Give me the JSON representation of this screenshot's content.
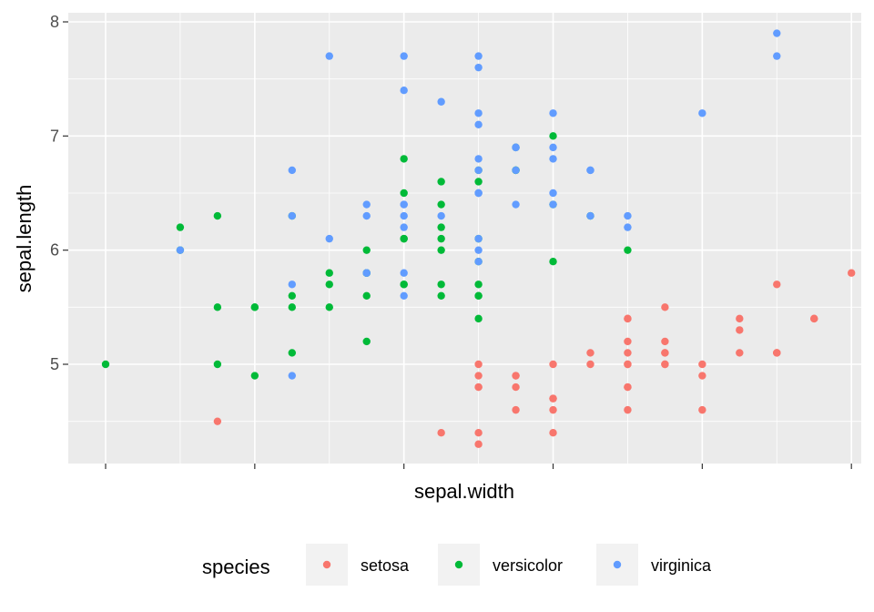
{
  "chart_data": {
    "type": "scatter",
    "title": "",
    "xlabel": "sepal.width",
    "ylabel": "sepal.length",
    "xlim": [
      2.0,
      4.4
    ],
    "ylim": [
      4.3,
      7.9
    ],
    "x_tick_labels_shown": false,
    "yticks": [
      5,
      6,
      7,
      8
    ],
    "y_tick_labels": [
      "5",
      "6",
      "7",
      "8"
    ],
    "grid": true,
    "legend": {
      "title": "species",
      "position": "bottom"
    },
    "series": [
      {
        "name": "setosa",
        "color": "#F8766D",
        "points": [
          [
            5.1,
            3.5
          ],
          [
            4.9,
            3.0
          ],
          [
            4.7,
            3.2
          ],
          [
            4.6,
            3.1
          ],
          [
            5.0,
            3.6
          ],
          [
            5.4,
            3.9
          ],
          [
            4.6,
            3.4
          ],
          [
            5.0,
            3.4
          ],
          [
            4.4,
            2.9
          ],
          [
            4.9,
            3.1
          ],
          [
            5.4,
            3.7
          ],
          [
            4.8,
            3.4
          ],
          [
            4.8,
            3.0
          ],
          [
            4.3,
            3.0
          ],
          [
            5.8,
            4.0
          ],
          [
            5.7,
            4.4
          ],
          [
            5.4,
            3.9
          ],
          [
            5.1,
            3.5
          ],
          [
            5.7,
            3.8
          ],
          [
            5.1,
            3.8
          ],
          [
            5.4,
            3.4
          ],
          [
            5.1,
            3.7
          ],
          [
            4.6,
            3.6
          ],
          [
            5.1,
            3.3
          ],
          [
            4.8,
            3.4
          ],
          [
            5.0,
            3.0
          ],
          [
            5.0,
            3.4
          ],
          [
            5.2,
            3.5
          ],
          [
            5.2,
            3.4
          ],
          [
            4.7,
            3.2
          ],
          [
            4.8,
            3.1
          ],
          [
            5.4,
            3.4
          ],
          [
            5.2,
            4.1
          ],
          [
            5.5,
            4.2
          ],
          [
            4.9,
            3.1
          ],
          [
            5.0,
            3.2
          ],
          [
            5.5,
            3.5
          ],
          [
            4.9,
            3.6
          ],
          [
            4.4,
            3.0
          ],
          [
            5.1,
            3.4
          ],
          [
            5.0,
            3.5
          ],
          [
            4.5,
            2.3
          ],
          [
            4.4,
            3.2
          ],
          [
            5.0,
            3.5
          ],
          [
            5.1,
            3.8
          ],
          [
            4.8,
            3.0
          ],
          [
            5.1,
            3.8
          ],
          [
            4.6,
            3.2
          ],
          [
            5.3,
            3.7
          ],
          [
            5.0,
            3.3
          ]
        ]
      },
      {
        "name": "versicolor",
        "color": "#00BA38",
        "points": [
          [
            7.0,
            3.2
          ],
          [
            6.4,
            3.2
          ],
          [
            6.9,
            3.1
          ],
          [
            5.5,
            2.3
          ],
          [
            6.5,
            2.8
          ],
          [
            5.7,
            2.8
          ],
          [
            6.3,
            3.3
          ],
          [
            4.9,
            2.4
          ],
          [
            6.6,
            2.9
          ],
          [
            5.2,
            2.7
          ],
          [
            5.0,
            2.0
          ],
          [
            5.9,
            3.0
          ],
          [
            6.0,
            2.2
          ],
          [
            6.1,
            2.9
          ],
          [
            5.6,
            2.9
          ],
          [
            6.7,
            3.1
          ],
          [
            5.6,
            3.0
          ],
          [
            5.8,
            2.7
          ],
          [
            6.2,
            2.2
          ],
          [
            5.6,
            2.5
          ],
          [
            5.9,
            3.2
          ],
          [
            6.1,
            2.8
          ],
          [
            6.3,
            2.5
          ],
          [
            6.1,
            2.8
          ],
          [
            6.4,
            2.9
          ],
          [
            6.6,
            3.0
          ],
          [
            6.8,
            2.8
          ],
          [
            6.7,
            3.0
          ],
          [
            6.0,
            2.9
          ],
          [
            5.7,
            2.6
          ],
          [
            5.5,
            2.4
          ],
          [
            5.5,
            2.4
          ],
          [
            5.8,
            2.7
          ],
          [
            6.0,
            2.7
          ],
          [
            5.4,
            3.0
          ],
          [
            6.0,
            3.4
          ],
          [
            6.7,
            3.1
          ],
          [
            6.3,
            2.3
          ],
          [
            5.6,
            3.0
          ],
          [
            5.5,
            2.5
          ],
          [
            5.5,
            2.6
          ],
          [
            6.1,
            3.0
          ],
          [
            5.8,
            2.6
          ],
          [
            5.0,
            2.3
          ],
          [
            5.6,
            2.7
          ],
          [
            5.7,
            3.0
          ],
          [
            5.7,
            2.9
          ],
          [
            6.2,
            2.9
          ],
          [
            5.1,
            2.5
          ],
          [
            5.7,
            2.8
          ]
        ]
      },
      {
        "name": "virginica",
        "color": "#619CFF",
        "points": [
          [
            6.3,
            3.3
          ],
          [
            5.8,
            2.7
          ],
          [
            7.1,
            3.0
          ],
          [
            6.3,
            2.9
          ],
          [
            6.5,
            3.0
          ],
          [
            7.6,
            3.0
          ],
          [
            4.9,
            2.5
          ],
          [
            7.3,
            2.9
          ],
          [
            6.7,
            2.5
          ],
          [
            7.2,
            3.6
          ],
          [
            6.5,
            3.2
          ],
          [
            6.4,
            2.7
          ],
          [
            6.8,
            3.0
          ],
          [
            5.7,
            2.5
          ],
          [
            5.8,
            2.8
          ],
          [
            6.4,
            3.2
          ],
          [
            6.5,
            3.0
          ],
          [
            7.7,
            3.8
          ],
          [
            7.7,
            2.6
          ],
          [
            6.0,
            2.2
          ],
          [
            6.9,
            3.2
          ],
          [
            5.6,
            2.8
          ],
          [
            7.7,
            2.8
          ],
          [
            6.3,
            2.7
          ],
          [
            6.7,
            3.3
          ],
          [
            7.2,
            3.2
          ],
          [
            6.2,
            2.8
          ],
          [
            6.1,
            3.0
          ],
          [
            6.4,
            2.8
          ],
          [
            7.2,
            3.0
          ],
          [
            7.4,
            2.8
          ],
          [
            7.9,
            3.8
          ],
          [
            6.4,
            2.8
          ],
          [
            6.3,
            2.8
          ],
          [
            6.1,
            2.6
          ],
          [
            7.7,
            3.0
          ],
          [
            6.3,
            3.4
          ],
          [
            6.4,
            3.1
          ],
          [
            6.0,
            3.0
          ],
          [
            6.9,
            3.1
          ],
          [
            6.7,
            3.1
          ],
          [
            6.9,
            3.1
          ],
          [
            5.8,
            2.7
          ],
          [
            6.8,
            3.2
          ],
          [
            6.7,
            3.3
          ],
          [
            6.7,
            3.0
          ],
          [
            6.3,
            2.5
          ],
          [
            6.5,
            3.0
          ],
          [
            6.2,
            3.4
          ],
          [
            5.9,
            3.0
          ]
        ]
      }
    ]
  }
}
